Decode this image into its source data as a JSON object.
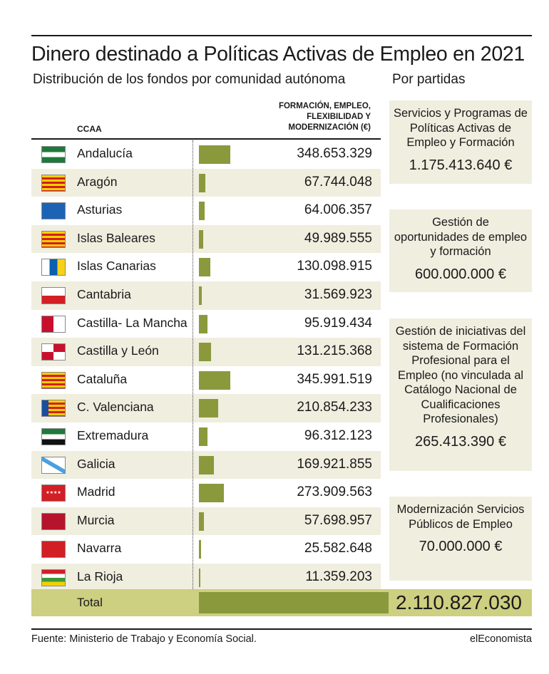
{
  "title": "Dinero destinado a Políticas Activas de Empleo en 2021",
  "subtitle": "Distribución de los fondos por comunidad autónoma",
  "subtitle_right": "Por partidas",
  "column_header": "FORMACIÓN, EMPLEO, FLEXIBILIDAD Y MODERNIZACIÓN (€)",
  "ccaa_label": "CCAA",
  "total_label": "Total",
  "total_value": "2.110.827.030",
  "source": "Fuente: Ministerio de Trabajo y Economía Social.",
  "brand": "elEconomista",
  "colors": {
    "bar": "#8a993c",
    "shade": "#f0eedf",
    "total_bg": "#cdcf81"
  },
  "chart_data": {
    "type": "bar",
    "orientation": "horizontal",
    "categories": [
      "Andalucía",
      "Aragón",
      "Asturias",
      "Islas Baleares",
      "Islas Canarias",
      "Cantabria",
      "Castilla- La Mancha",
      "Castilla y León",
      "Cataluña",
      "C. Valenciana",
      "Extremadura",
      "Galicia",
      "Madrid",
      "Murcia",
      "Navarra",
      "La Rioja"
    ],
    "values": [
      348653329,
      67744048,
      64006357,
      49989555,
      130098915,
      31569923,
      95919434,
      131215368,
      345991519,
      210854233,
      96312123,
      169921855,
      273909563,
      57698957,
      25582648,
      11359203
    ],
    "labels": [
      "348.653.329",
      "67.744.048",
      "64.006.357",
      "49.989.555",
      "130.098.915",
      "31.569.923",
      "95.919.434",
      "131.215.368",
      "345.991.519",
      "210.854.233",
      "96.312.123",
      "169.921.855",
      "273.909.563",
      "57.698.957",
      "25.582.648",
      "11.359.203"
    ],
    "flags": [
      "flag-andalucia",
      "flag-aragon",
      "flag-asturias",
      "flag-baleares",
      "flag-canarias",
      "flag-cantabria",
      "flag-castilla-la-mancha",
      "flag-castilla-leon",
      "flag-cataluna",
      "flag-valencia",
      "flag-extremadura",
      "flag-galicia",
      "flag-madrid",
      "flag-murcia",
      "flag-navarra",
      "flag-la-rioja"
    ],
    "total": 2110827030
  },
  "partidas": [
    {
      "title": "Servicios y Programas de Políticas Activas de Empleo y Formación",
      "value": "1.175.413.640 €"
    },
    {
      "title": "Gestión de oportunidades de empleo y formación",
      "value": "600.000.000 €"
    },
    {
      "title": "Gestión de iniciativas del sistema de Formación Profesional para el Empleo (no vinculada al Catálogo Nacional de Cualificaciones Profesionales)",
      "value": "265.413.390 €"
    },
    {
      "title": "Modernización Servicios Públicos de Empleo",
      "value": "70.000.000 €"
    }
  ]
}
